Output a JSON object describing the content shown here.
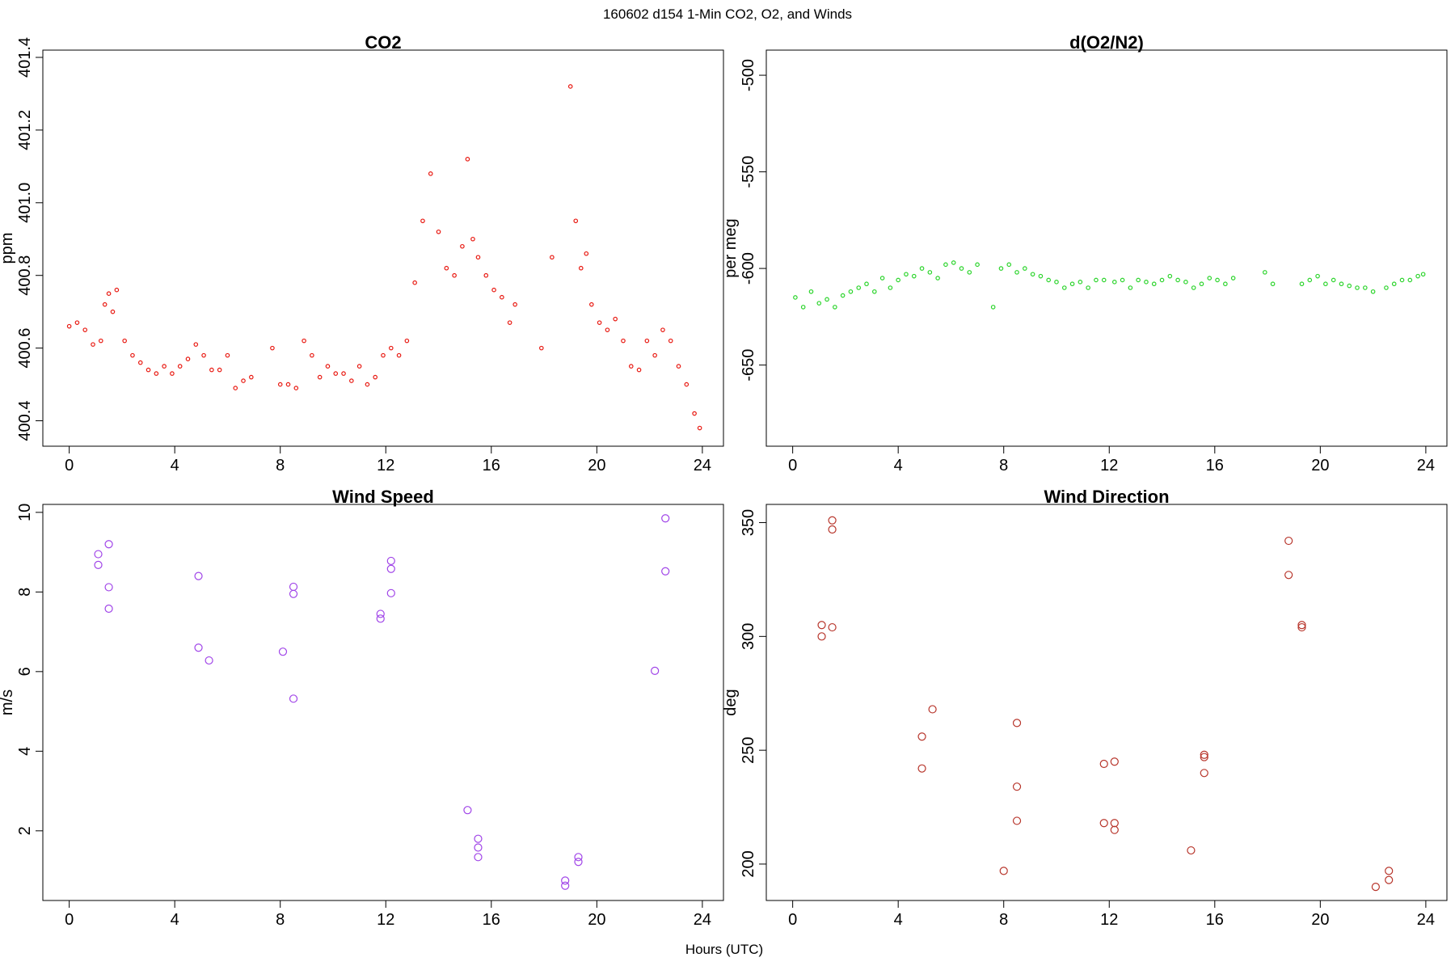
{
  "page": {
    "title": "160602   d154   1-Min CO2, O2, and Winds",
    "xlabel": "Hours (UTC)"
  },
  "chart_data": [
    {
      "id": "co2",
      "type": "scatter",
      "title": "CO2",
      "ylabel": "ppm",
      "xlabel": "",
      "xlim": [
        -1,
        24.8
      ],
      "ylim": [
        400.33,
        401.42
      ],
      "xticks": [
        0,
        4,
        8,
        12,
        16,
        20,
        24
      ],
      "yticks": [
        400.4,
        400.6,
        400.8,
        401.0,
        401.2,
        401.4
      ],
      "ytick_labels": [
        "400.4",
        "400.6",
        "400.8",
        "401.0",
        "401.2",
        "401.4"
      ],
      "color": "#e8170f",
      "marker_size": 2.2,
      "grid": false,
      "series": [
        {
          "x": [
            0.0,
            0.3,
            0.6,
            0.9,
            1.2,
            1.35,
            1.5,
            1.65,
            1.8,
            2.1,
            2.4,
            2.7,
            3.0,
            3.3,
            3.6,
            3.9,
            4.2,
            4.5,
            4.8,
            5.1,
            5.4,
            5.7,
            6.0,
            6.3,
            6.6,
            6.9,
            7.7,
            8.0,
            8.3,
            8.6,
            8.9,
            9.2,
            9.5,
            9.8,
            10.1,
            10.4,
            10.7,
            11.0,
            11.3,
            11.6,
            11.9,
            12.2,
            12.5,
            12.8,
            13.1,
            13.4,
            13.7,
            14.0,
            14.3,
            14.6,
            14.9,
            15.1,
            15.3,
            15.5,
            15.8,
            16.1,
            16.4,
            16.7,
            16.9,
            17.9,
            18.3,
            19.0,
            19.2,
            19.4,
            19.6,
            19.8,
            20.1,
            20.4,
            20.7,
            21.0,
            21.3,
            21.6,
            21.9,
            22.2,
            22.5,
            22.8,
            23.1,
            23.4,
            23.7,
            23.9
          ],
          "y": [
            400.66,
            400.67,
            400.65,
            400.61,
            400.62,
            400.72,
            400.75,
            400.7,
            400.76,
            400.62,
            400.58,
            400.56,
            400.54,
            400.53,
            400.55,
            400.53,
            400.55,
            400.57,
            400.61,
            400.58,
            400.54,
            400.54,
            400.58,
            400.49,
            400.51,
            400.52,
            400.6,
            400.5,
            400.5,
            400.49,
            400.62,
            400.58,
            400.52,
            400.55,
            400.53,
            400.53,
            400.51,
            400.55,
            400.5,
            400.52,
            400.58,
            400.6,
            400.58,
            400.62,
            400.78,
            400.95,
            401.08,
            400.92,
            400.82,
            400.8,
            400.88,
            401.12,
            400.9,
            400.85,
            400.8,
            400.76,
            400.74,
            400.67,
            400.72,
            400.6,
            400.85,
            401.32,
            400.95,
            400.82,
            400.86,
            400.72,
            400.67,
            400.65,
            400.68,
            400.62,
            400.55,
            400.54,
            400.62,
            400.58,
            400.65,
            400.62,
            400.55,
            400.5,
            400.42,
            400.38
          ]
        }
      ]
    },
    {
      "id": "o2",
      "type": "scatter",
      "title": "d(O2/N2)",
      "ylabel": "per meg",
      "xlabel": "",
      "xlim": [
        -1,
        24.8
      ],
      "ylim": [
        -692,
        -487
      ],
      "xticks": [
        0,
        4,
        8,
        12,
        16,
        20,
        24
      ],
      "yticks": [
        -650,
        -600,
        -550,
        -500
      ],
      "ytick_labels": [
        "-650",
        "-600",
        "-550",
        "-500"
      ],
      "color": "#2ad42a",
      "marker_size": 2.2,
      "grid": false,
      "series": [
        {
          "x": [
            0.1,
            0.4,
            0.7,
            1.0,
            1.3,
            1.6,
            1.9,
            2.2,
            2.5,
            2.8,
            3.1,
            3.4,
            3.7,
            4.0,
            4.3,
            4.6,
            4.9,
            5.2,
            5.5,
            5.8,
            6.1,
            6.4,
            6.7,
            7.0,
            7.6,
            7.9,
            8.2,
            8.5,
            8.8,
            9.1,
            9.4,
            9.7,
            10.0,
            10.3,
            10.6,
            10.9,
            11.2,
            11.5,
            11.8,
            12.2,
            12.5,
            12.8,
            13.1,
            13.4,
            13.7,
            14.0,
            14.3,
            14.6,
            14.9,
            15.2,
            15.5,
            15.8,
            16.1,
            16.4,
            16.7,
            17.9,
            18.2,
            19.3,
            19.6,
            19.9,
            20.2,
            20.5,
            20.8,
            21.1,
            21.4,
            21.7,
            22.0,
            22.5,
            22.8,
            23.1,
            23.4,
            23.7,
            23.9
          ],
          "y": [
            -615,
            -620,
            -612,
            -618,
            -616,
            -620,
            -614,
            -612,
            -610,
            -608,
            -612,
            -605,
            -610,
            -606,
            -603,
            -604,
            -600,
            -602,
            -605,
            -598,
            -597,
            -600,
            -602,
            -598,
            -620,
            -600,
            -598,
            -602,
            -600,
            -603,
            -604,
            -606,
            -607,
            -610,
            -608,
            -607,
            -610,
            -606,
            -606,
            -607,
            -606,
            -610,
            -606,
            -607,
            -608,
            -606,
            -604,
            -606,
            -607,
            -610,
            -608,
            -605,
            -606,
            -608,
            -605,
            -602,
            -608,
            -608,
            -606,
            -604,
            -608,
            -606,
            -608,
            -609,
            -610,
            -610,
            -612,
            -610,
            -608,
            -606,
            -606,
            -604,
            -603
          ]
        }
      ]
    },
    {
      "id": "wspd",
      "type": "scatter",
      "title": "Wind Speed",
      "ylabel": "m/s",
      "xlabel": "",
      "xlim": [
        -1,
        24.8
      ],
      "ylim": [
        0.25,
        10.2
      ],
      "xticks": [
        0,
        4,
        8,
        12,
        16,
        20,
        24
      ],
      "yticks": [
        2,
        4,
        6,
        8,
        10
      ],
      "ytick_labels": [
        "2",
        "4",
        "6",
        "8",
        "10"
      ],
      "color": "#a044e8",
      "marker_size": 4.5,
      "grid": false,
      "series": [
        {
          "x": [
            1.1,
            1.1,
            1.5,
            1.5,
            1.5,
            4.9,
            4.9,
            5.3,
            8.1,
            8.5,
            8.5,
            8.5,
            11.8,
            11.8,
            12.2,
            12.2,
            12.2,
            15.1,
            15.5,
            15.5,
            15.5,
            18.8,
            18.8,
            19.3,
            19.3,
            22.2,
            22.6,
            22.6
          ],
          "y": [
            8.95,
            8.68,
            9.2,
            8.12,
            7.58,
            8.4,
            6.6,
            6.28,
            6.5,
            8.13,
            7.95,
            5.32,
            7.45,
            7.33,
            8.78,
            8.58,
            7.97,
            2.52,
            1.8,
            1.58,
            1.34,
            0.75,
            0.62,
            1.34,
            1.22,
            6.02,
            9.85,
            8.52
          ]
        }
      ]
    },
    {
      "id": "wdir",
      "type": "scatter",
      "title": "Wind Direction",
      "ylabel": "deg",
      "xlabel": "",
      "xlim": [
        -1,
        24.8
      ],
      "ylim": [
        184,
        358
      ],
      "xticks": [
        0,
        4,
        8,
        12,
        16,
        20,
        24
      ],
      "yticks": [
        200,
        250,
        300,
        350
      ],
      "ytick_labels": [
        "200",
        "250",
        "300",
        "350"
      ],
      "color": "#b7342a",
      "marker_size": 4.5,
      "grid": false,
      "series": [
        {
          "x": [
            1.1,
            1.1,
            1.5,
            1.5,
            1.5,
            4.9,
            4.9,
            5.3,
            8.0,
            8.5,
            8.5,
            8.5,
            11.8,
            11.8,
            12.2,
            12.2,
            12.2,
            15.1,
            15.6,
            15.6,
            15.6,
            18.8,
            18.8,
            19.3,
            19.3,
            22.1,
            22.6,
            22.6
          ],
          "y": [
            305,
            300,
            351,
            347,
            304,
            256,
            242,
            268,
            197,
            262,
            234,
            219,
            244,
            218,
            245,
            218,
            215,
            206,
            248,
            247,
            240,
            342,
            327,
            305,
            304,
            190,
            197,
            193
          ]
        }
      ]
    }
  ]
}
